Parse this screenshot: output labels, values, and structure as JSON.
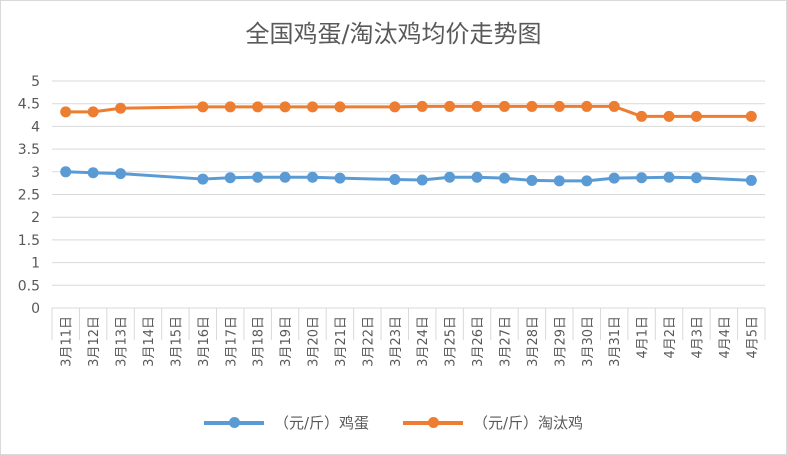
{
  "colors": {
    "egg": "#5B9BD5",
    "hen": "#ED7D31",
    "grid": "#d9d9d9",
    "text": "#595959"
  },
  "chart_data": {
    "type": "line",
    "title": "全国鸡蛋/淘汰鸡均价走势图",
    "ylim": [
      0,
      5
    ],
    "yticks": [
      "0",
      "0.5",
      "1",
      "1.5",
      "2",
      "2.5",
      "3",
      "3.5",
      "4",
      "4.5",
      "5"
    ],
    "grid": true,
    "legend_position": "bottom",
    "categories": [
      "3月11日",
      "3月12日",
      "3月13日",
      "3月14日",
      "3月15日",
      "3月16日",
      "3月17日",
      "3月18日",
      "3月19日",
      "3月20日",
      "3月21日",
      "3月22日",
      "3月23日",
      "3月24日",
      "3月25日",
      "3月26日",
      "3月27日",
      "3月28日",
      "3月29日",
      "3月30日",
      "3月31日",
      "4月1日",
      "4月2日",
      "4月3日",
      "4月4日",
      "4月5日"
    ],
    "series": [
      {
        "name": "（元/斤）鸡蛋",
        "color": "#5B9BD5",
        "values": [
          3.0,
          2.98,
          2.96,
          null,
          null,
          2.84,
          2.87,
          2.88,
          2.88,
          2.88,
          2.86,
          null,
          2.83,
          2.82,
          2.88,
          2.88,
          2.86,
          2.81,
          2.8,
          2.8,
          2.86,
          2.87,
          2.88,
          2.87,
          null,
          2.81
        ]
      },
      {
        "name": "（元/斤）淘汰鸡",
        "color": "#ED7D31",
        "values": [
          4.32,
          4.32,
          4.4,
          null,
          null,
          4.43,
          4.43,
          4.43,
          4.43,
          4.43,
          4.43,
          null,
          4.43,
          4.44,
          4.44,
          4.44,
          4.44,
          4.44,
          4.44,
          4.44,
          4.44,
          4.22,
          4.22,
          4.22,
          null,
          4.22
        ]
      }
    ]
  }
}
